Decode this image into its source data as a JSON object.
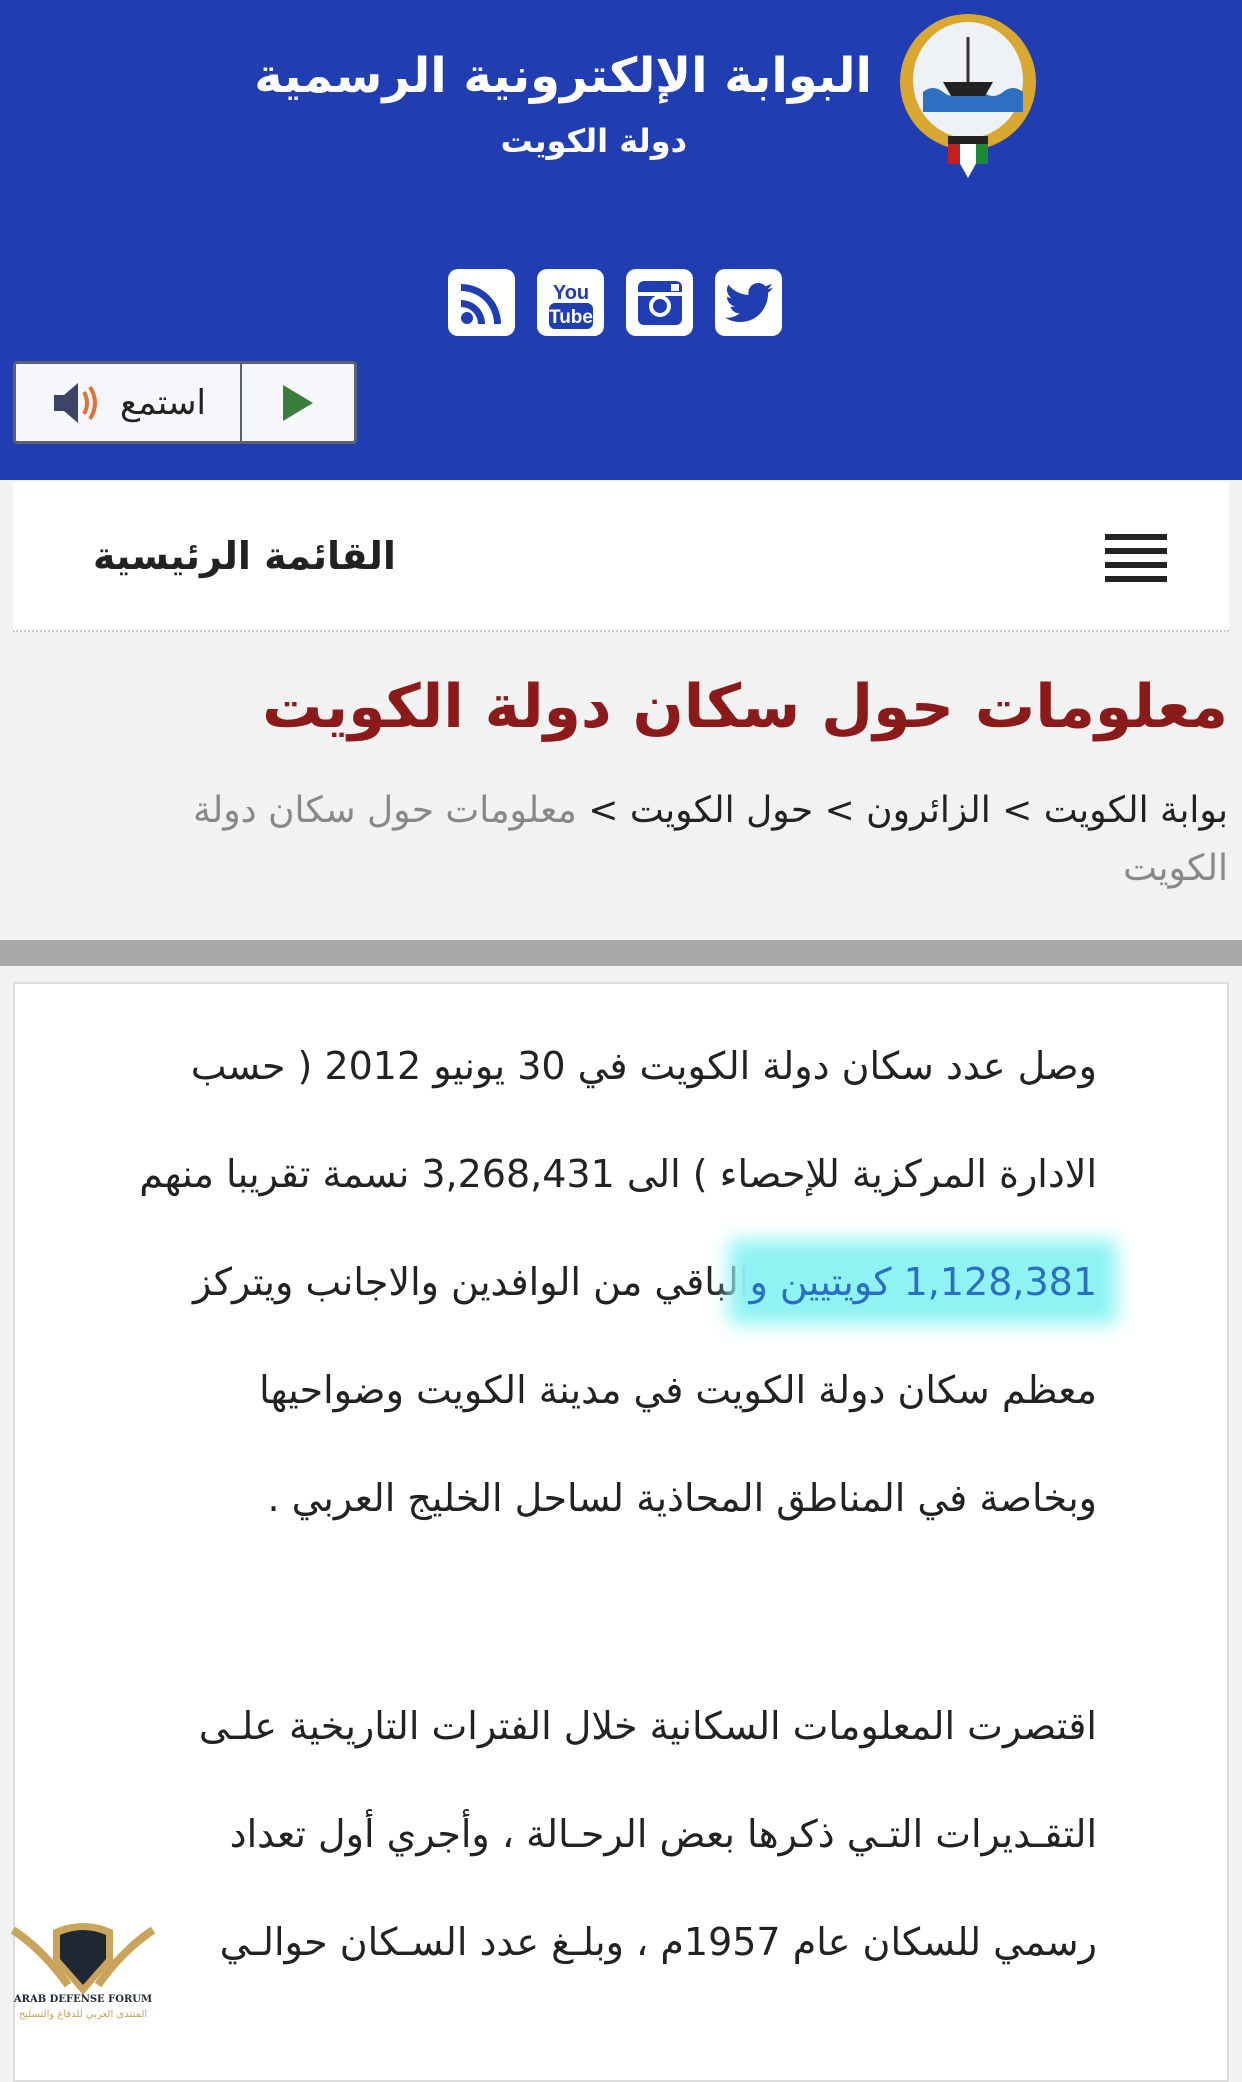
{
  "header": {
    "title": "البوابة الإلكترونية الرسمية",
    "subtitle": "دولة  الكويت",
    "logo": "kuwait-emblem",
    "bg_color": "#203db2",
    "social": [
      "rss-icon",
      "youtube-icon",
      "instagram-icon",
      "twitter-icon"
    ],
    "listen_label": "استمع"
  },
  "nav": {
    "menu_label": "القائمة الرئيسية"
  },
  "page": {
    "title": "معلومات حول سكان دولة الكويت",
    "title_color": "#8b1b1b",
    "breadcrumb": [
      {
        "label": "بوابة الكويت"
      },
      {
        "label": "الزائرون"
      },
      {
        "label": "حول الكويت"
      },
      {
        "label": "معلومات حول سكان دولة الكويت"
      }
    ],
    "separator": ">"
  },
  "content": {
    "p1": [
      "وصل عدد سكان دولة الكويت في 30 يونيو 2012 ( حسب",
      "الادارة المركزية للإحصاء )  الى 3,268,431 نسمة تقريبا منهم"
    ],
    "p1_hl": "1,128,381 كويتيين و",
    "p1_rest": "الباقي من الوافدين والاجانب ويتركز",
    "p1_tail": [
      "معظم سكان دولة الكويت في مدينة الكويت وضواحيها",
      "وبخاصة في المناطق المحاذية لساحل الخليج العربي ."
    ],
    "p2": [
      "اقتصرت المعلومات السكانية خلال الفترات التاريخية علـى",
      "التقـديرات التـي ذكرها بعض الرحـالة ، وأجري أول تعداد",
      "رسمي للسكان عام 1957م ، وبلـغ عدد السـكان حوالـي"
    ],
    "highlight_color": "#8ff3f3"
  },
  "watermark": {
    "text": "ARAB DEFENSE FORUM",
    "text_ar": "المنتدى العربي للدفاع والتسليح"
  }
}
